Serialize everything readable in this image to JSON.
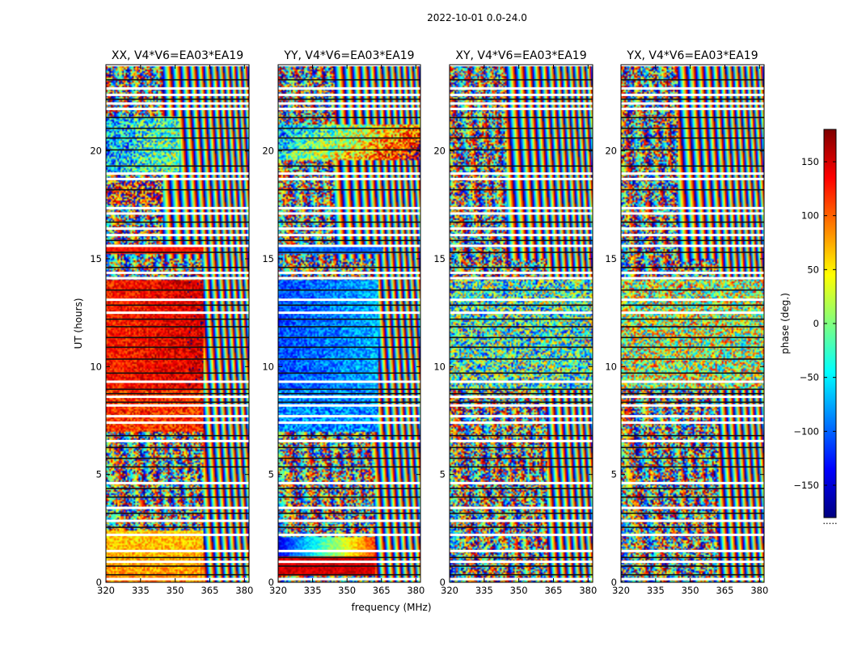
{
  "chart_data": {
    "type": "heatmap",
    "suptitle": "2022-10-01 0.0-24.0",
    "xlabel": "frequency (MHz)",
    "ylabel": "UT (hours)",
    "xlim": [
      320,
      382
    ],
    "ylim": [
      0,
      24
    ],
    "x_ticks": [
      320,
      335,
      350,
      365,
      380
    ],
    "y_ticks": [
      0,
      5,
      10,
      15,
      20
    ],
    "colorbar": {
      "label": "phase (deg.)",
      "range": [
        -180,
        180
      ],
      "ticks": [
        150,
        100,
        50,
        0,
        -50,
        -100,
        -150
      ],
      "tick_labels": [
        "150",
        "100",
        "50",
        "0",
        "−50",
        "−100",
        "−150"
      ],
      "colormap": [
        "#00007f",
        "#0000ff",
        "#007fff",
        "#00ffff",
        "#7fff7f",
        "#ffff00",
        "#ff7f00",
        "#ff0000",
        "#7f0000"
      ],
      "footnote": "....."
    },
    "panels": [
      {
        "title": "XX, V4*V6=EA03*EA19",
        "kind": "xx"
      },
      {
        "title": "YY, V4*V6=EA03*EA19",
        "kind": "yy"
      },
      {
        "title": "XY, V4*V6=EA03*EA19",
        "kind": "xy"
      },
      {
        "title": "YX, V4*V6=EA03*EA19",
        "kind": "yx"
      }
    ],
    "blank_rows_ut": [
      0.15,
      0.95,
      1.45,
      2.2,
      2.85,
      3.45,
      4.6,
      6.55,
      7.4,
      7.7,
      8.2,
      8.6,
      9.3,
      12.5,
      13.1,
      14.1,
      14.35,
      15.6,
      16.1,
      16.4,
      17.1,
      17.35,
      18.7,
      18.95,
      21.95,
      22.2,
      22.6,
      22.9
    ],
    "dark_rows_ut": [
      0.35,
      0.75,
      1.15,
      2.55,
      3.2,
      3.95,
      4.35,
      5.35,
      5.75,
      6.25,
      6.8,
      8.35,
      8.75,
      8.95,
      9.7,
      10.35,
      10.9,
      11.35,
      11.85,
      12.2,
      12.85,
      13.55,
      14.6,
      15.3,
      15.85,
      16.7,
      18.2,
      19.3,
      20.05,
      20.6,
      21.05,
      21.55,
      22.4,
      23.3
    ]
  }
}
